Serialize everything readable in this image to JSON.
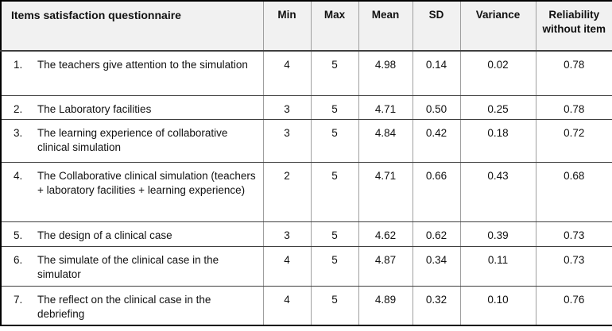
{
  "table": {
    "items_header": "Items satisfaction questionnaire",
    "columns": [
      "Min",
      "Max",
      "Mean",
      "SD",
      "Variance",
      "Reliability without item"
    ],
    "rows": [
      {
        "num": "1.",
        "item": "The teachers give attention to the simulation",
        "min": "4",
        "max": "5",
        "mean": "4.98",
        "sd": "0.14",
        "variance": "0.02",
        "reliability": "0.78"
      },
      {
        "num": "2.",
        "item": "The Laboratory facilities",
        "min": "3",
        "max": "5",
        "mean": "4.71",
        "sd": "0.50",
        "variance": "0.25",
        "reliability": "0.78"
      },
      {
        "num": "3.",
        "item": "The learning experience of collaborative clinical simulation",
        "min": "3",
        "max": "5",
        "mean": "4.84",
        "sd": "0.42",
        "variance": "0.18",
        "reliability": "0.72"
      },
      {
        "num": "4.",
        "item": "The Collaborative clinical simulation (teachers + laboratory facilities + learning experience)",
        "min": "2",
        "max": "5",
        "mean": "4.71",
        "sd": "0.66",
        "variance": "0.43",
        "reliability": "0.68"
      },
      {
        "num": "5.",
        "item": "The design of a clinical case",
        "min": "3",
        "max": "5",
        "mean": "4.62",
        "sd": "0.62",
        "variance": "0.39",
        "reliability": "0.73"
      },
      {
        "num": "6.",
        "item": "The simulate of the clinical case in the simulator",
        "min": "4",
        "max": "5",
        "mean": "4.87",
        "sd": "0.34",
        "variance": "0.11",
        "reliability": "0.73"
      },
      {
        "num": "7.",
        "item": "The reflect on the clinical case in the debriefing",
        "min": "4",
        "max": "5",
        "mean": "4.89",
        "sd": "0.32",
        "variance": "0.10",
        "reliability": "0.76"
      }
    ]
  },
  "colors": {
    "header_bg": "#f1f1f1",
    "outer_border": "#000000",
    "row_divider": "#3f3f3f",
    "column_divider": "#9f9f9f"
  }
}
